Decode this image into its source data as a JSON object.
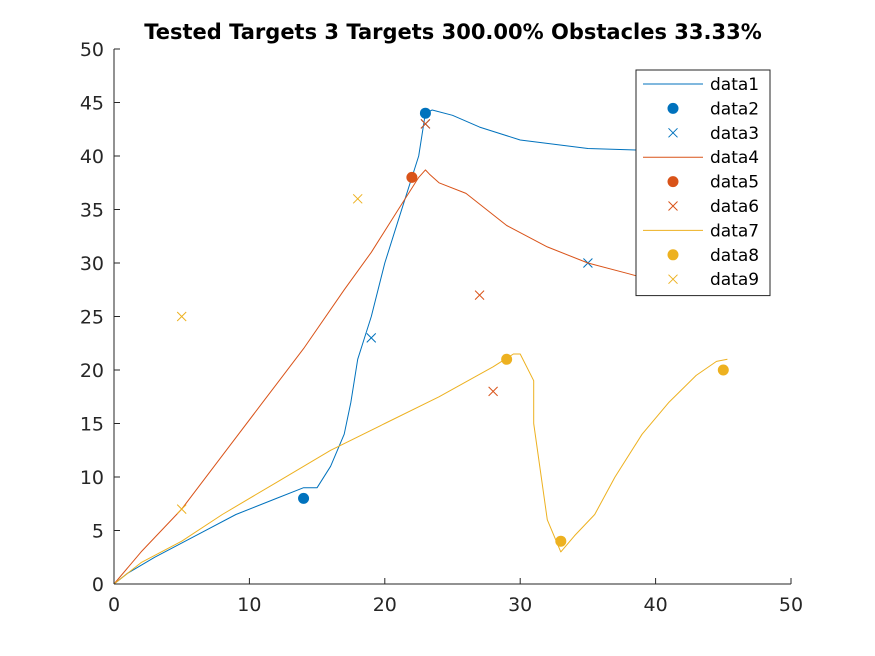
{
  "chart_data": {
    "type": "line",
    "title": "Tested Targets 3 Targets 300.00% Obstacles 33.33%",
    "xlabel": "",
    "ylabel": "",
    "xlim": [
      0,
      50
    ],
    "ylim": [
      0,
      50
    ],
    "xticks": [
      "0",
      "10",
      "20",
      "30",
      "40",
      "50"
    ],
    "yticks": [
      "0",
      "5",
      "10",
      "15",
      "20",
      "25",
      "30",
      "35",
      "40",
      "45",
      "50"
    ],
    "grid": false,
    "legend_position": "top-right",
    "series": [
      {
        "name": "data1",
        "kind": "line",
        "color": "#0072BD",
        "x": [
          0,
          1,
          3,
          6,
          9,
          12,
          14,
          15,
          16,
          17,
          17.5,
          18,
          18.5,
          19,
          20,
          21,
          22,
          22.5,
          23,
          23.5,
          25,
          27,
          30,
          35,
          40,
          42
        ],
        "y": [
          0,
          1,
          2.5,
          4.5,
          6.5,
          8,
          9,
          9,
          11,
          14,
          17,
          21,
          23,
          25,
          30,
          34,
          38,
          40,
          44,
          44.3,
          43.8,
          42.7,
          41.5,
          40.7,
          40.5,
          40.4
        ]
      },
      {
        "name": "data2",
        "kind": "marker-dot",
        "color": "#0072BD",
        "x": [
          14,
          23
        ],
        "y": [
          8,
          44
        ]
      },
      {
        "name": "data3",
        "kind": "marker-x",
        "color": "#0072BD",
        "x": [
          19,
          23,
          35
        ],
        "y": [
          23,
          43,
          30
        ]
      },
      {
        "name": "data4",
        "kind": "line",
        "color": "#D95319",
        "x": [
          0,
          2,
          5,
          8,
          11,
          14,
          17,
          19,
          21,
          22,
          22.5,
          23,
          23.3,
          24,
          26,
          29,
          32,
          35,
          38,
          40
        ],
        "y": [
          0,
          3,
          7,
          12,
          17,
          22,
          27.5,
          31,
          35,
          37,
          38,
          38.7,
          38.3,
          37.5,
          36.5,
          33.5,
          31.5,
          30,
          29,
          28.3
        ]
      },
      {
        "name": "data5",
        "kind": "marker-dot",
        "color": "#D95319",
        "x": [
          22
        ],
        "y": [
          38
        ]
      },
      {
        "name": "data6",
        "kind": "marker-x",
        "color": "#D95319",
        "x": [
          23,
          27,
          28
        ],
        "y": [
          43,
          27,
          18
        ]
      },
      {
        "name": "data7",
        "kind": "line",
        "color": "#EDB120",
        "x": [
          0,
          2,
          5,
          8,
          12,
          16,
          20,
          24,
          28,
          29.5,
          30,
          31,
          31,
          32,
          33,
          34,
          35.5,
          37,
          39,
          41,
          43,
          44.5,
          45.3
        ],
        "y": [
          0,
          2,
          4,
          6.5,
          9.5,
          12.5,
          15,
          17.5,
          20.3,
          21.5,
          21.5,
          19,
          15,
          6,
          3,
          4.5,
          6.5,
          10,
          14,
          17,
          19.5,
          20.8,
          21
        ]
      },
      {
        "name": "data8",
        "kind": "marker-dot",
        "color": "#EDB120",
        "x": [
          29,
          33,
          45
        ],
        "y": [
          21,
          4,
          20
        ]
      },
      {
        "name": "data9",
        "kind": "marker-x",
        "color": "#EDB120",
        "x": [
          5,
          5,
          18
        ],
        "y": [
          25,
          7,
          36
        ]
      }
    ]
  }
}
